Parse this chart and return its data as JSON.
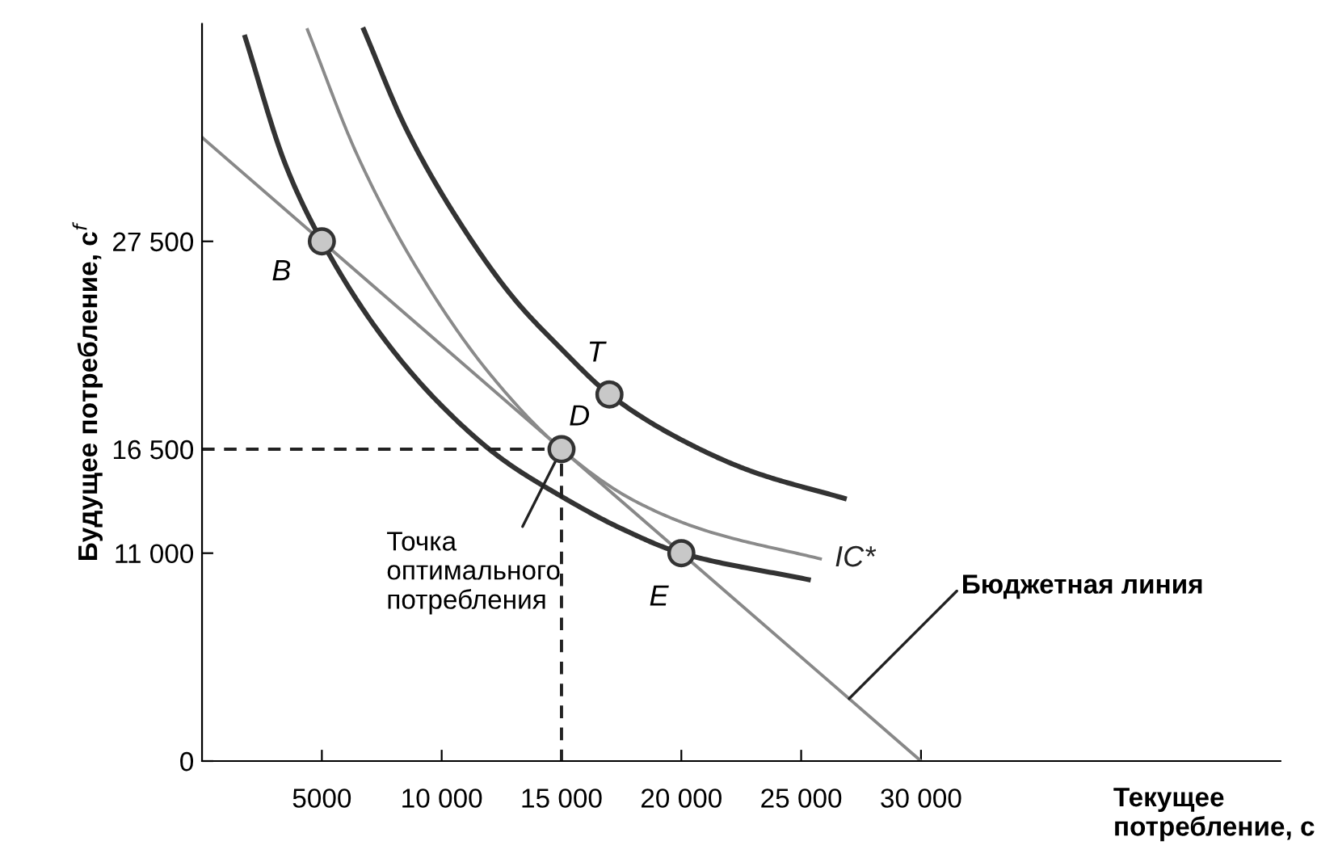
{
  "chart_data": {
    "type": "line",
    "xlabel": "Текущее\nпотребление, c",
    "ylabel": "Будущее потребление, c$^{f}$",
    "xlim": [
      0,
      45000
    ],
    "ylim": [
      0,
      39000
    ],
    "xticks": [
      {
        "value": 5000,
        "label": "5000"
      },
      {
        "value": 10000,
        "label": "10 000"
      },
      {
        "value": 15000,
        "label": "15 000"
      },
      {
        "value": 20000,
        "label": "20 000"
      },
      {
        "value": 25000,
        "label": "25 000"
      },
      {
        "value": 30000,
        "label": "30 000"
      }
    ],
    "yticks": [
      {
        "value": 0,
        "label": "0"
      },
      {
        "value": 11000,
        "label": "11 000"
      },
      {
        "value": 16500,
        "label": "16 500"
      },
      {
        "value": 27500,
        "label": "27 500"
      }
    ],
    "grid": false,
    "series": [
      {
        "color": "#888888",
        "x": [
          0,
          30000
        ],
        "values": [
          33000,
          0
        ]
      },
      {
        "color": "#333333",
        "x": [
          1800,
          3500,
          5000,
          7500,
          10000,
          12500,
          15000,
          17500,
          20000,
          25300
        ],
        "values": [
          38300,
          31500,
          27500,
          22500,
          18800,
          16000,
          14000,
          12300,
          11000,
          9600
        ]
      },
      {
        "name": "IC*",
        "color": "#8a8a8a",
        "x": [
          4400,
          6500,
          9000,
          12000,
          15000,
          18000,
          21000,
          25800
        ],
        "values": [
          38700,
          32000,
          26000,
          20500,
          16500,
          13800,
          12200,
          10700
        ]
      },
      {
        "color": "#333333",
        "x": [
          6750,
          8500,
          10500,
          13000,
          15000,
          17000,
          20000,
          23000,
          26800
        ],
        "values": [
          38700,
          33500,
          29000,
          24500,
          21800,
          19400,
          17000,
          15300,
          13900
        ]
      },
      {
        "color": "#222222",
        "line_style": "dashed",
        "x": [
          0,
          15000,
          15000
        ],
        "values": [
          16500,
          16500,
          0
        ]
      },
      {
        "type": "scatter",
        "color": "#c8c8c8",
        "marker": "circle",
        "x": [
          5000,
          15000,
          17000,
          20000
        ],
        "values": [
          27500,
          16500,
          19400,
          11000
        ]
      }
    ],
    "annotations": [
      {
        "text": "B",
        "x": 5000,
        "y": 27500
      },
      {
        "text": "D",
        "x": 15000,
        "y": 16500
      },
      {
        "text": "T",
        "x": 17000,
        "y": 19400
      },
      {
        "text": "E",
        "x": 20000,
        "y": 11000
      },
      {
        "text": "Точка\nоптимального\nпотребления",
        "x": 15000,
        "y": 16500
      },
      {
        "text": "Бюджетная линия",
        "x": 27000,
        "y": 3300
      }
    ]
  }
}
